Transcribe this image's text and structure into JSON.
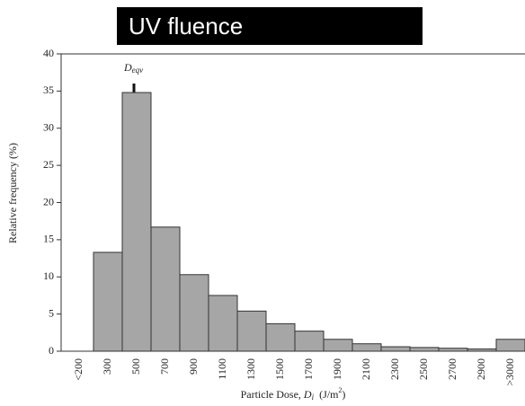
{
  "chart_data": {
    "type": "histogram",
    "title": "UV fluence",
    "annotation": {
      "base": "D",
      "sub": "eqv"
    },
    "ylabel": "Relative frequency (%)",
    "xlabel": {
      "text": "Particle Dose, ",
      "var": "D",
      "sub": "i",
      "unit": "(J/m",
      "sup": "2",
      "close": ")"
    },
    "categories": [
      "<200",
      "300",
      "500",
      "700",
      "900",
      "1100",
      "1300",
      "1500",
      "1700",
      "1900",
      "2100",
      "2300",
      "2500",
      "2700",
      "2900",
      ">3000"
    ],
    "values": [
      0,
      13.3,
      34.8,
      16.7,
      10.3,
      7.5,
      5.4,
      3.7,
      2.7,
      1.6,
      1.0,
      0.6,
      0.5,
      0.4,
      0.3,
      1.6
    ],
    "color": "#a6a6a6",
    "ylim": [
      0,
      40
    ],
    "yticks": [
      0,
      5,
      10,
      15,
      20,
      25,
      30,
      35,
      40
    ]
  }
}
